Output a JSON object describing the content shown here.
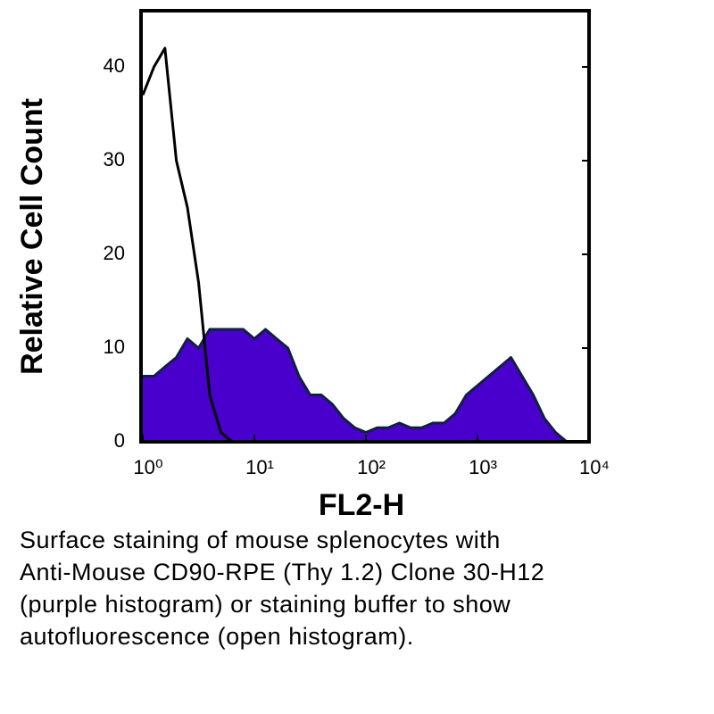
{
  "chart_data": {
    "type": "histogram-overlay",
    "y_label": "Relative Cell Count",
    "x_label": "FL2-H",
    "caption": [
      "Surface staining of mouse splenocytes with",
      "Anti-Mouse CD90-RPE (Thy 1.2) Clone 30-H12",
      "(purple histogram) or staining buffer to show",
      "autofluorescence (open histogram)."
    ],
    "x_log": true,
    "xlim": [
      1,
      10000
    ],
    "xticks": [
      {
        "value": 1,
        "label": "10⁰"
      },
      {
        "value": 10,
        "label": "10¹"
      },
      {
        "value": 100,
        "label": "10²"
      },
      {
        "value": 1000,
        "label": "10³"
      },
      {
        "value": 10000,
        "label": "10⁴"
      }
    ],
    "ylim": [
      0,
      46
    ],
    "yticks": [
      0,
      10,
      20,
      30,
      40
    ],
    "x": [
      1,
      1.26,
      1.58,
      2,
      2.51,
      3.16,
      3.98,
      5.01,
      6.31,
      7.94,
      10,
      12.6,
      15.8,
      20,
      25.1,
      31.6,
      39.8,
      50.1,
      63.1,
      79.4,
      100,
      126,
      158,
      200,
      251,
      316,
      398,
      501,
      631,
      794,
      1000,
      1259,
      1585,
      1995,
      2512,
      3162,
      3981,
      5012,
      6310,
      7943,
      10000
    ],
    "series": [
      {
        "color": "#4a00cc",
        "filled": true,
        "values": [
          7,
          7,
          8,
          9,
          11,
          10,
          12,
          12,
          12,
          12,
          11,
          12,
          11,
          10,
          7,
          5,
          5,
          4,
          2.5,
          1.5,
          1,
          1.5,
          1.5,
          2,
          1.5,
          1.5,
          2,
          2,
          3,
          5,
          6,
          7,
          8,
          9,
          7,
          5,
          2.5,
          1,
          0,
          0,
          0
        ]
      },
      {
        "color": "#000000",
        "filled": false,
        "values": [
          37,
          40,
          42,
          30,
          25,
          17,
          5,
          1,
          0,
          0,
          0,
          0,
          0,
          0,
          0,
          0,
          0,
          0,
          0,
          0,
          0,
          0,
          0,
          0,
          0,
          0,
          0,
          0,
          0,
          0,
          0,
          0,
          0,
          0,
          0,
          0,
          0,
          0,
          0,
          0,
          0
        ]
      }
    ]
  }
}
